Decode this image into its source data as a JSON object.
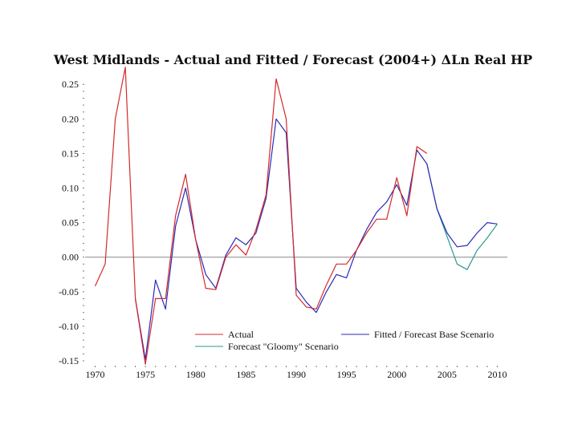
{
  "chart_data": {
    "type": "line",
    "title": "West Midlands - Actual and Fitted / Forecast (2004+) ΔLn Real HP",
    "xlabel": "",
    "ylabel": "",
    "xlim": [
      1969,
      2011
    ],
    "ylim": [
      -0.15,
      0.27
    ],
    "x_ticks": [
      1970,
      1975,
      1980,
      1985,
      1990,
      1995,
      2000,
      2005,
      2010
    ],
    "x_tick_labels": [
      "1970",
      "1975",
      "1980",
      "1985",
      "1990",
      "1995",
      "2000",
      "2005",
      "2010"
    ],
    "y_ticks": [
      -0.15,
      -0.1,
      -0.05,
      0.0,
      0.05,
      0.1,
      0.15,
      0.2,
      0.25
    ],
    "y_tick_labels": [
      "-0.15",
      "-0.10",
      "-0.05",
      "0.00",
      "0.05",
      "0.10",
      "0.15",
      "0.20",
      "0.25"
    ],
    "zero_line": true,
    "legend_position": "bottom-center",
    "series": [
      {
        "name": "Actual",
        "color": "#d42a2a",
        "x": [
          1970,
          1971,
          1972,
          1973,
          1974,
          1975,
          1976,
          1977,
          1978,
          1979,
          1980,
          1981,
          1982,
          1983,
          1984,
          1985,
          1986,
          1987,
          1988,
          1989,
          1990,
          1991,
          1992,
          1993,
          1994,
          1995,
          1996,
          1997,
          1998,
          1999,
          2000,
          2001,
          2002,
          2003
        ],
        "values": [
          -0.042,
          -0.01,
          0.2,
          0.275,
          -0.06,
          -0.155,
          -0.06,
          -0.06,
          0.06,
          0.12,
          0.025,
          -0.045,
          -0.047,
          0.0,
          0.018,
          0.003,
          0.04,
          0.09,
          0.258,
          0.2,
          -0.055,
          -0.072,
          -0.075,
          -0.04,
          -0.01,
          -0.01,
          0.01,
          0.035,
          0.055,
          0.055,
          0.115,
          0.06,
          0.16,
          0.15
        ]
      },
      {
        "name": "Fitted / Forecast Base Scenario",
        "color": "#2a2ab8",
        "x": [
          1974,
          1975,
          1976,
          1977,
          1978,
          1979,
          1980,
          1981,
          1982,
          1983,
          1984,
          1985,
          1986,
          1987,
          1988,
          1989,
          1990,
          1991,
          1992,
          1993,
          1994,
          1995,
          1996,
          1997,
          1998,
          1999,
          2000,
          2001,
          2002,
          2003,
          2004,
          2005,
          2006,
          2007,
          2008,
          2009,
          2010
        ],
        "values": [
          -0.06,
          -0.148,
          -0.033,
          -0.075,
          0.045,
          0.1,
          0.025,
          -0.025,
          -0.045,
          0.003,
          0.028,
          0.018,
          0.035,
          0.085,
          0.2,
          0.18,
          -0.045,
          -0.065,
          -0.08,
          -0.05,
          -0.025,
          -0.03,
          0.01,
          0.04,
          0.065,
          0.08,
          0.105,
          0.075,
          0.155,
          0.135,
          0.07,
          0.035,
          0.015,
          0.017,
          0.035,
          0.05,
          0.048
        ]
      },
      {
        "name": "Forecast \"Gloomy\" Scenario",
        "color": "#2a9a8e",
        "x": [
          2003,
          2004,
          2005,
          2006,
          2007,
          2008,
          2009,
          2010
        ],
        "values": [
          0.135,
          0.07,
          0.03,
          -0.01,
          -0.018,
          0.01,
          0.028,
          0.048
        ]
      }
    ]
  }
}
